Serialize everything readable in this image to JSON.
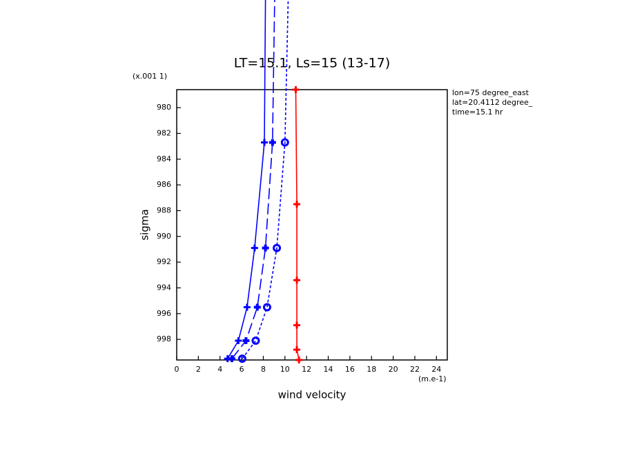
{
  "chart_data": {
    "type": "line",
    "title": "LT=15.1, Ls=15 (13-17)",
    "x_label": "wind velocity",
    "y_label": "sigma",
    "x_unit": "(m.e-1)",
    "y_unit": "(x.001 1)",
    "annotations": [
      "lon=75 degree_east",
      "lat=20.4112 degree_",
      "time=15.1 hr"
    ],
    "xlim": [
      0,
      25
    ],
    "xticks": [
      0,
      2,
      4,
      6,
      8,
      10,
      12,
      14,
      16,
      18,
      20,
      22,
      24
    ],
    "ylim": [
      999.6,
      978.6
    ],
    "yticks": [
      980,
      982,
      984,
      986,
      988,
      990,
      992,
      994,
      996,
      998
    ],
    "series": [
      {
        "color": "#0000ff",
        "dash": "solid",
        "marker": "plus",
        "x": [
          4.7,
          5.7,
          6.5,
          7.2,
          8.1,
          8.2
        ],
        "values": [
          999.5,
          998.1,
          995.5,
          990.9,
          982.7,
          971.6
        ]
      },
      {
        "color": "#0000ff",
        "dash": "long",
        "marker": "star",
        "x": [
          5.1,
          6.4,
          7.45,
          8.2,
          8.85,
          9.05
        ],
        "values": [
          999.5,
          998.1,
          995.5,
          990.9,
          982.7,
          971.6
        ]
      },
      {
        "color": "#0000ff",
        "dash": "dotted",
        "marker": "circle",
        "x": [
          6.05,
          7.3,
          8.35,
          9.25,
          10.0,
          10.3
        ],
        "values": [
          999.5,
          998.1,
          995.5,
          990.9,
          982.7,
          971.6
        ]
      },
      {
        "color": "#ff0000",
        "dash": "solid",
        "marker": "plus",
        "x": [
          11.0,
          11.1,
          11.1,
          11.1,
          11.1,
          11.3
        ],
        "values": [
          978.6,
          987.5,
          993.4,
          996.9,
          998.8,
          999.6
        ]
      }
    ]
  }
}
